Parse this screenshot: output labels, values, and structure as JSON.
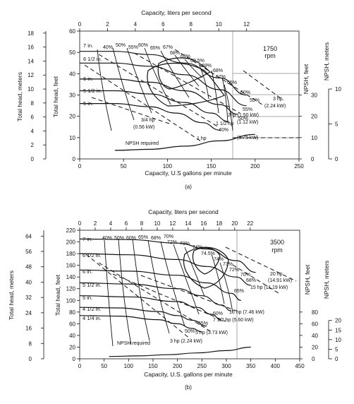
{
  "figure_labels": {
    "a": "(a)",
    "b": "(b)"
  },
  "chart_data": [
    {
      "type": "line",
      "panel": "(a)",
      "speed_label": "1750",
      "speed_unit": "rpm",
      "xlabel": "Capacity, U.S gallons per minute",
      "x2label": "Capacity, liters per second",
      "ylabel": "Total head, feet",
      "y2label": "Total head, meters",
      "y3label": "NPSH, feet",
      "y4label": "NPSH, meters",
      "xlim": [
        0,
        250
      ],
      "ylim": [
        0,
        60
      ],
      "x_ticks": [
        0,
        50,
        100,
        150,
        200,
        250
      ],
      "x2_ticks": [
        0,
        2,
        4,
        6,
        8,
        10,
        12
      ],
      "y_ticks": [
        0,
        10,
        20,
        30,
        40,
        50,
        60
      ],
      "y2_ticks": [
        0,
        2,
        4,
        6,
        8,
        10,
        12,
        14,
        16,
        18
      ],
      "npsh_ft_ticks": [
        0,
        10,
        20,
        30
      ],
      "npsh_m_ticks": [
        0,
        5,
        10
      ],
      "head_curves": [
        {
          "name": "7 in.",
          "x": [
            0,
            40,
            80,
            120,
            160,
            190
          ],
          "y": [
            50.5,
            50.5,
            49,
            45,
            38,
            30
          ]
        },
        {
          "name": "6 1/2 in.",
          "x": [
            0,
            40,
            80,
            120,
            160,
            190
          ],
          "y": [
            45,
            45,
            43.5,
            39.5,
            32.5,
            25
          ]
        },
        {
          "name": "6 in.",
          "x": [
            0,
            40,
            80,
            120,
            160,
            180
          ],
          "y": [
            37.5,
            37.5,
            36,
            32,
            25.5,
            21
          ]
        },
        {
          "name": "5 1/2 in.",
          "x": [
            0,
            40,
            80,
            120,
            150,
            170
          ],
          "y": [
            32,
            32,
            30.5,
            26.5,
            21.5,
            17.5
          ]
        },
        {
          "name": "5 in.",
          "x": [
            0,
            40,
            80,
            110,
            140,
            160
          ],
          "y": [
            26,
            26,
            24.5,
            21.5,
            17,
            13.5
          ]
        }
      ],
      "efficiency_labels": [
        "40%",
        "50%",
        "55%",
        "60%",
        "65%",
        "67%",
        "68%",
        "69%",
        "69.5%",
        "69%",
        "68%",
        "67%",
        "65%",
        "60%",
        "55%",
        "55%",
        "50%",
        "40%"
      ],
      "power_labels": [
        "3 hp",
        "(2.24 kW)",
        "2hp (1.50 kW)",
        "(1.12 kW)",
        "1 1/2 hp",
        "1 hp",
        "(0.75 kW)",
        "3/4 hp",
        "(0.56 kW)"
      ],
      "npsh_curve": {
        "name": "NPSH required",
        "x": [
          40,
          80,
          120,
          160,
          200
        ],
        "y": [
          4,
          4.5,
          6,
          8.5,
          11.5
        ]
      }
    },
    {
      "type": "line",
      "panel": "(b)",
      "speed_label": "3500",
      "speed_unit": "rpm",
      "xlabel": "Capacity, U.S. gallons per minute",
      "x2label": "Capacity, liters per second",
      "ylabel": "Total head, feet",
      "y2label": "Total head, meters",
      "y3label": "NPSH, feet",
      "y4label": "NPSH, meters",
      "xlim": [
        0,
        450
      ],
      "ylim": [
        0,
        220
      ],
      "x_ticks": [
        0,
        50,
        100,
        150,
        200,
        250,
        300,
        350,
        400,
        450
      ],
      "x2_ticks": [
        0,
        2,
        4,
        6,
        8,
        10,
        12,
        14,
        16,
        18,
        20,
        22
      ],
      "y_ticks": [
        0,
        20,
        40,
        60,
        80,
        100,
        120,
        140,
        160,
        180,
        200,
        220
      ],
      "y2_ticks": [
        0,
        8,
        16,
        24,
        32,
        40,
        48,
        56,
        64
      ],
      "npsh_ft_ticks": [
        0,
        20,
        40,
        60,
        80
      ],
      "npsh_m_ticks": [
        0,
        5,
        10,
        15,
        20
      ],
      "head_curves": [
        {
          "name": "7 in.",
          "x": [
            0,
            100,
            200,
            260,
            320,
            360
          ],
          "y": [
            205,
            204,
            198,
            188,
            168,
            148
          ]
        },
        {
          "name": "6 1/2 in.",
          "x": [
            0,
            100,
            200,
            260,
            320,
            350
          ],
          "y": [
            180,
            178,
            170,
            158,
            140,
            126
          ]
        },
        {
          "name": "6 in.",
          "x": [
            0,
            100,
            200,
            260,
            310,
            330
          ],
          "y": [
            152,
            150,
            143,
            130,
            112,
            100
          ]
        },
        {
          "name": "5 1/2 in.",
          "x": [
            0,
            100,
            200,
            250,
            290,
            310
          ],
          "y": [
            130,
            128,
            120,
            108,
            92,
            82
          ]
        },
        {
          "name": "5 in.",
          "x": [
            0,
            100,
            200,
            240,
            270,
            290
          ],
          "y": [
            108,
            106,
            98,
            88,
            76,
            66
          ]
        },
        {
          "name": "4 1/2 in.",
          "x": [
            0,
            80,
            160,
            200,
            230,
            260
          ],
          "y": [
            88,
            87,
            81,
            74,
            66,
            56
          ]
        },
        {
          "name": "4 1/4 in.",
          "x": [
            0,
            80,
            160,
            200,
            230,
            250
          ],
          "y": [
            74,
            73,
            67,
            60,
            52,
            46
          ]
        }
      ],
      "efficiency_labels": [
        "40%",
        "50%",
        "60%",
        "65%",
        "68%",
        "70%",
        "72%",
        "73%",
        "74%",
        "74.5%",
        "74%",
        "73%",
        "72%",
        "70%",
        "68%",
        "65%",
        "60%",
        "55%",
        "50%"
      ],
      "power_labels": [
        "20 hp",
        "(14.91 kW)",
        "15 hp (11.19 kW)",
        "10 hp (7.46 kW)",
        "7 1/2 hp (5.60 kW)",
        "5 hp (3.73 kW)",
        "3 hp (2.24 kW)"
      ],
      "npsh_curve": {
        "name": "NPSH required",
        "x": [
          60,
          120,
          180,
          240,
          300,
          350
        ],
        "y": [
          4,
          5,
          7,
          10,
          14,
          20
        ]
      }
    }
  ]
}
